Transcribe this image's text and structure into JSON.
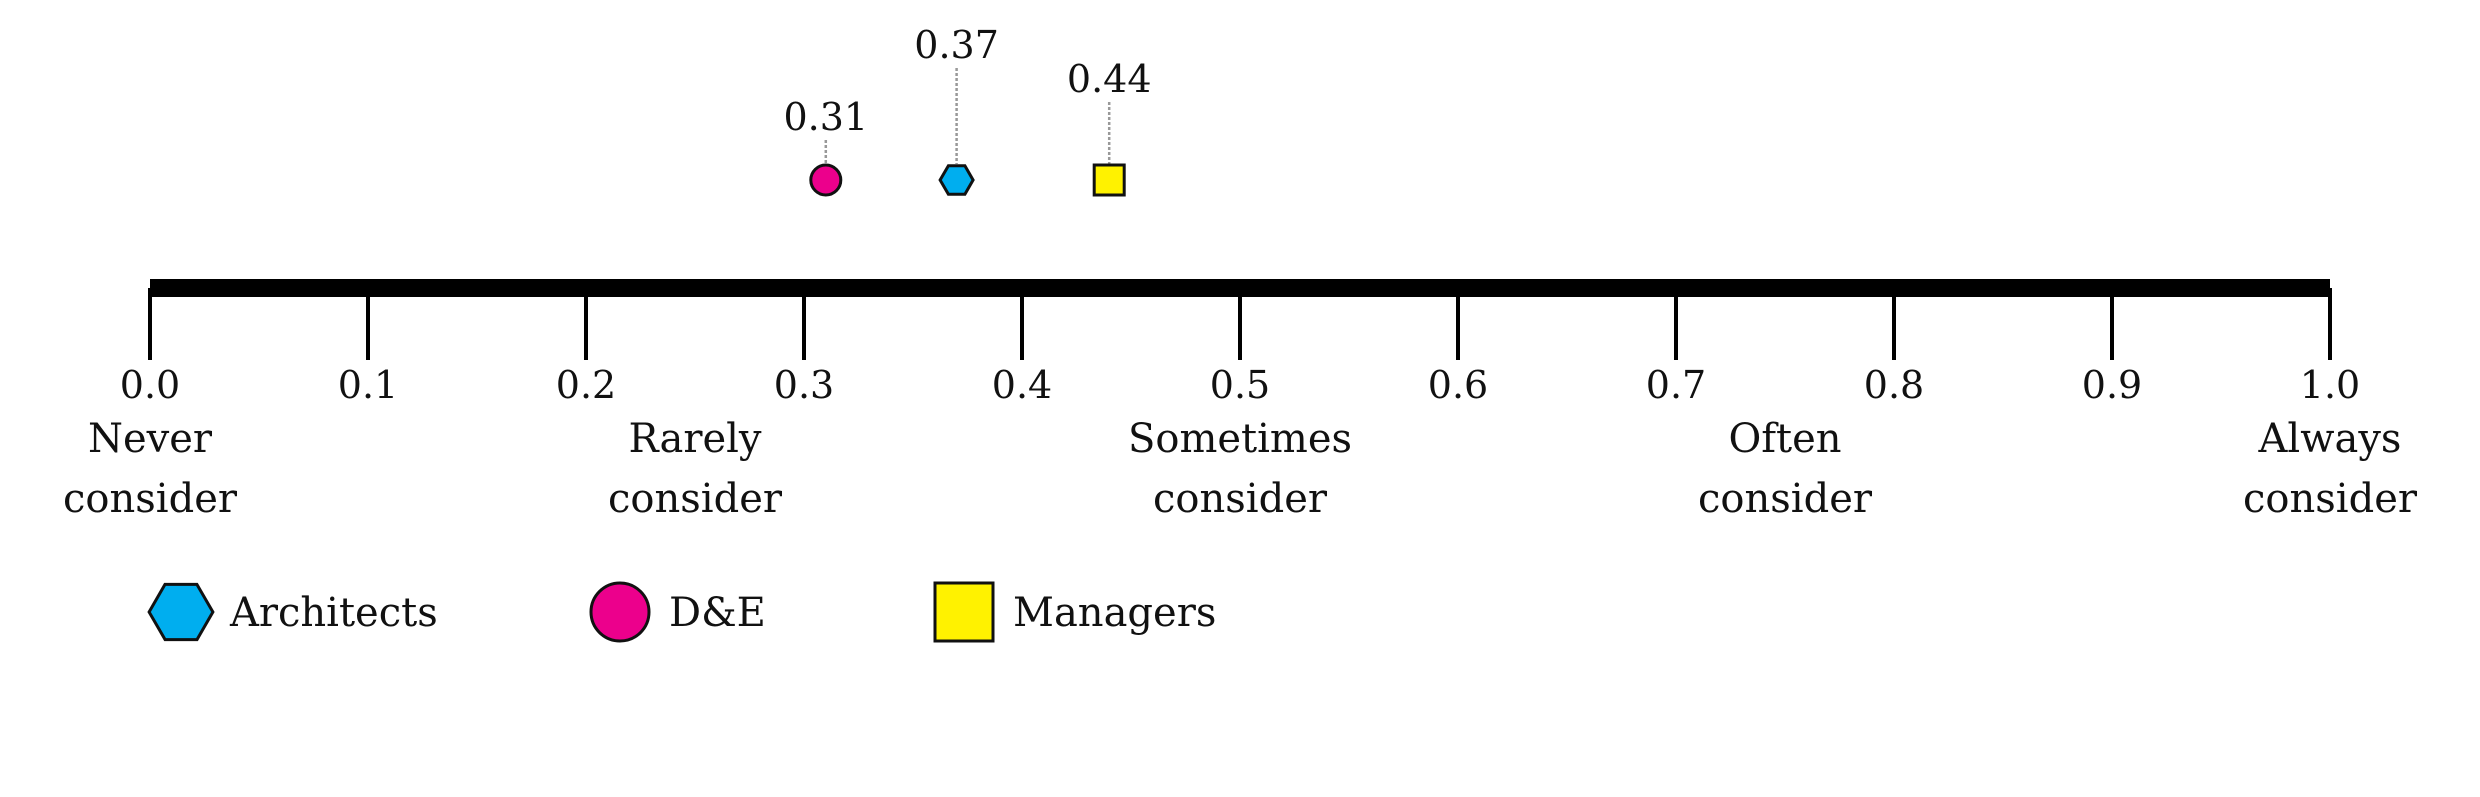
{
  "chart_data": {
    "type": "scatter",
    "title": "",
    "xlabel": "",
    "ylabel": "",
    "xlim": [
      0.0,
      1.0
    ],
    "ticks": [
      "0.0",
      "0.1",
      "0.2",
      "0.3",
      "0.4",
      "0.5",
      "0.6",
      "0.7",
      "0.8",
      "0.9",
      "1.0"
    ],
    "tick_values": [
      0.0,
      0.1,
      0.2,
      0.3,
      0.4,
      0.5,
      0.6,
      0.7,
      0.8,
      0.9,
      1.0
    ],
    "scale_labels": [
      {
        "value": 0.0,
        "lines": [
          "Never",
          "consider"
        ]
      },
      {
        "value": 0.25,
        "lines": [
          "Rarely",
          "consider"
        ]
      },
      {
        "value": 0.5,
        "lines": [
          "Sometimes",
          "consider"
        ]
      },
      {
        "value": 0.75,
        "lines": [
          "Often",
          "consider"
        ]
      },
      {
        "value": 1.0,
        "lines": [
          "Always",
          "consider"
        ]
      }
    ],
    "series": [
      {
        "name": "D&E",
        "value": 0.31,
        "label": "0.31",
        "marker": "circle-icon",
        "color": "#ec008c"
      },
      {
        "name": "Architects",
        "value": 0.37,
        "label": "0.37",
        "marker": "hexagon-icon",
        "color": "#00aeef"
      },
      {
        "name": "Managers",
        "value": 0.44,
        "label": "0.44",
        "marker": "square-icon",
        "color": "#fff200"
      }
    ],
    "legend": {
      "placement": "bottom-left",
      "entries": [
        {
          "label": "Architects",
          "marker": "hexagon-icon",
          "color": "#00aeef"
        },
        {
          "label": "D&E",
          "marker": "circle-icon",
          "color": "#ec008c"
        },
        {
          "label": "Managers",
          "marker": "square-icon",
          "color": "#fff200"
        }
      ]
    }
  }
}
